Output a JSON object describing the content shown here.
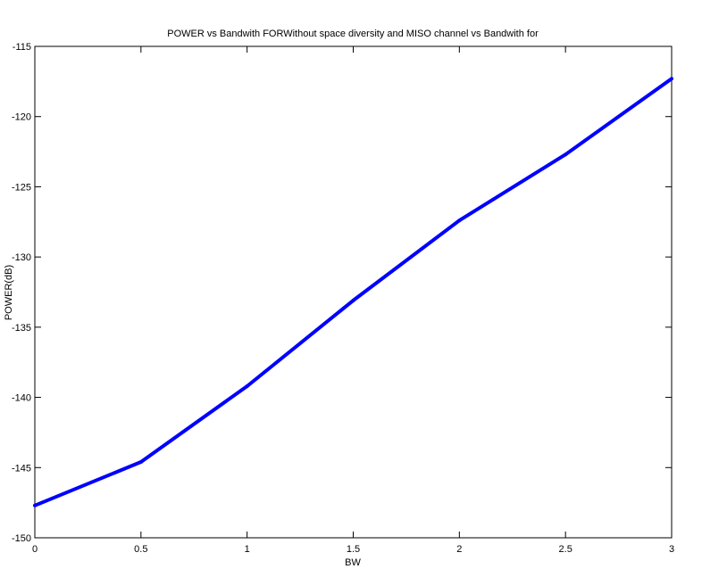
{
  "chart_data": {
    "type": "line",
    "title": "POWER vs Bandwith  FORWithout space diversity and MISO channel vs Bandwith for",
    "xlabel": "BW",
    "ylabel": "POWER(dB)",
    "xlim": [
      0,
      3
    ],
    "ylim": [
      -150,
      -115
    ],
    "xticks": [
      "0",
      "0.5",
      "1",
      "1.5",
      "2",
      "2.5",
      "3"
    ],
    "yticks": [
      "-150",
      "-145",
      "-140",
      "-135",
      "-130",
      "-125",
      "-120",
      "-115"
    ],
    "grid": false,
    "series": [
      {
        "color": "#0000ff",
        "x": [
          0,
          0.5,
          1,
          1.5,
          2,
          2.5,
          3
        ],
        "y": [
          -147.7,
          -144.6,
          -139.2,
          -133.1,
          -127.4,
          -122.7,
          -117.3
        ]
      }
    ]
  }
}
